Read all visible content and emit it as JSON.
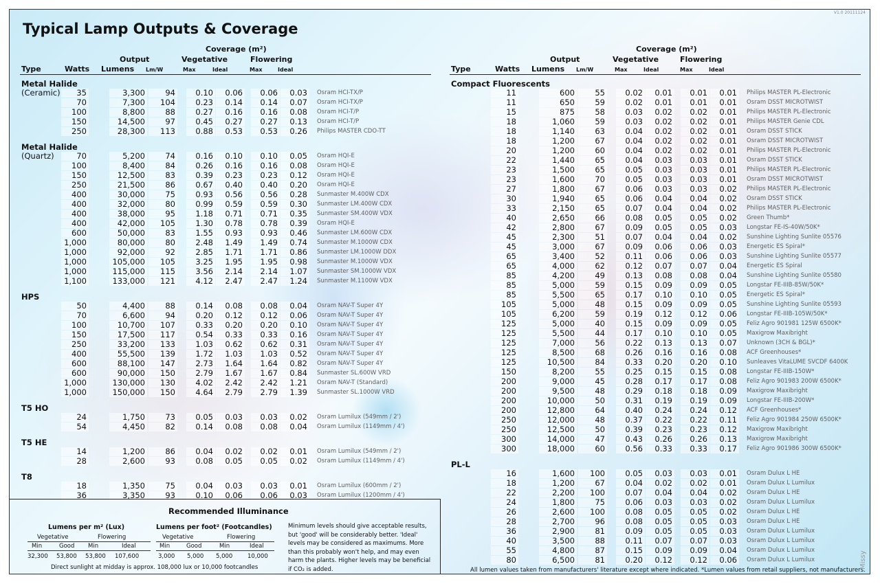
{
  "version": "V1.0 20111124",
  "title": "Typical Lamp Outputs & Coverage",
  "headers": {
    "coverage": "Coverage (m²)",
    "output": "Output",
    "vegetative": "Vegetative",
    "flowering": "Flowering",
    "type": "Type",
    "watts": "Watts",
    "lumens": "Lumens",
    "lmw": "Lm/W",
    "max": "Max",
    "ideal": "Ideal"
  },
  "left_sections": [
    {
      "title": "Metal Halide",
      "subtitle": "(Ceramic)",
      "rows": [
        [
          "35",
          "3,300",
          "94",
          "0.10",
          "0.06",
          "0.06",
          "0.03",
          "Osram HCI-TX/P"
        ],
        [
          "70",
          "7,300",
          "104",
          "0.23",
          "0.14",
          "0.14",
          "0.07",
          "Osram HCI-TX/P"
        ],
        [
          "100",
          "8,800",
          "88",
          "0.27",
          "0.16",
          "0.16",
          "0.08",
          "Osram HCI-T/P"
        ],
        [
          "150",
          "14,500",
          "97",
          "0.45",
          "0.27",
          "0.27",
          "0.13",
          "Osram HCI-T/P"
        ],
        [
          "250",
          "28,300",
          "113",
          "0.88",
          "0.53",
          "0.53",
          "0.26",
          "Philips MASTER CDO-TT"
        ]
      ]
    },
    {
      "title": "Metal Halide",
      "subtitle": "(Quartz)",
      "rows": [
        [
          "70",
          "5,200",
          "74",
          "0.16",
          "0.10",
          "0.10",
          "0.05",
          "Osram HQI-E"
        ],
        [
          "100",
          "8,400",
          "84",
          "0.26",
          "0.16",
          "0.16",
          "0.08",
          "Osram HQI-E"
        ],
        [
          "150",
          "12,500",
          "83",
          "0.39",
          "0.23",
          "0.23",
          "0.12",
          "Osram HQI-E"
        ],
        [
          "250",
          "21,500",
          "86",
          "0.67",
          "0.40",
          "0.40",
          "0.20",
          "Osram HQI-E"
        ],
        [
          "400",
          "30,000",
          "75",
          "0.93",
          "0.56",
          "0.56",
          "0.28",
          "Sunmaster M.400W CDX"
        ],
        [
          "400",
          "32,000",
          "80",
          "0.99",
          "0.59",
          "0.59",
          "0.30",
          "Sunmaster LM.400W CDX"
        ],
        [
          "400",
          "38,000",
          "95",
          "1.18",
          "0.71",
          "0.71",
          "0.35",
          "Sunmaster SM.400W VDX"
        ],
        [
          "400",
          "42,000",
          "105",
          "1.30",
          "0.78",
          "0.78",
          "0.39",
          "Osram HQI-E"
        ],
        [
          "600",
          "50,000",
          "83",
          "1.55",
          "0.93",
          "0.93",
          "0.46",
          "Sunmaster LM.600W CDX"
        ],
        [
          "1,000",
          "80,000",
          "80",
          "2.48",
          "1.49",
          "1.49",
          "0.74",
          "Sunmaster M.1000W CDX"
        ],
        [
          "1,000",
          "92,000",
          "92",
          "2.85",
          "1.71",
          "1.71",
          "0.86",
          "Sunmaster LM.1000W DDX"
        ],
        [
          "1,000",
          "105,000",
          "105",
          "3.25",
          "1.95",
          "1.95",
          "0.98",
          "Sunmaster M.1000W VDX"
        ],
        [
          "1,000",
          "115,000",
          "115",
          "3.56",
          "2.14",
          "2.14",
          "1.07",
          "Sunmaster SM.1000W VDX"
        ],
        [
          "1,100",
          "133,000",
          "121",
          "4.12",
          "2.47",
          "2.47",
          "1.24",
          "Sunmaster M.1100W VDX"
        ]
      ]
    },
    {
      "title": "HPS",
      "subtitle": "",
      "rows": [
        [
          "50",
          "4,400",
          "88",
          "0.14",
          "0.08",
          "0.08",
          "0.04",
          "Osram NAV-T Super 4Y"
        ],
        [
          "70",
          "6,600",
          "94",
          "0.20",
          "0.12",
          "0.12",
          "0.06",
          "Osram NAV-T Super 4Y"
        ],
        [
          "100",
          "10,700",
          "107",
          "0.33",
          "0.20",
          "0.20",
          "0.10",
          "Osram NAV-T Super 4Y"
        ],
        [
          "150",
          "17,500",
          "117",
          "0.54",
          "0.33",
          "0.33",
          "0.16",
          "Osram NAV-T Super 4Y"
        ],
        [
          "250",
          "33,200",
          "133",
          "1.03",
          "0.62",
          "0.62",
          "0.31",
          "Osram NAV-T Super 4Y"
        ],
        [
          "400",
          "55,500",
          "139",
          "1.72",
          "1.03",
          "1.03",
          "0.52",
          "Osram NAV-T Super 4Y"
        ],
        [
          "600",
          "88,100",
          "147",
          "2.73",
          "1.64",
          "1.64",
          "0.82",
          "Osram NAV-T Super 4Y"
        ],
        [
          "600",
          "90,000",
          "150",
          "2.79",
          "1.67",
          "1.67",
          "0.84",
          "Sunmaster SL.600W VRD"
        ],
        [
          "1,000",
          "130,000",
          "130",
          "4.02",
          "2.42",
          "2.42",
          "1.21",
          "Osram NAV-T (Standard)"
        ],
        [
          "1,000",
          "150,000",
          "150",
          "4.64",
          "2.79",
          "2.79",
          "1.39",
          "Sunmaster SL.1000W VRD"
        ]
      ]
    },
    {
      "title": "T5 HO",
      "subtitle": "",
      "rows": [
        [
          "24",
          "1,750",
          "73",
          "0.05",
          "0.03",
          "0.03",
          "0.02",
          "Osram Lumilux (549mm / 2')"
        ],
        [
          "54",
          "4,450",
          "82",
          "0.14",
          "0.08",
          "0.08",
          "0.04",
          "Osram Lumilux (1149mm / 4')"
        ]
      ]
    },
    {
      "title": "T5 HE",
      "subtitle": "",
      "rows": [
        [
          "14",
          "1,200",
          "86",
          "0.04",
          "0.02",
          "0.02",
          "0.01",
          "Osram Lumilux (549mm / 2')"
        ],
        [
          "28",
          "2,600",
          "93",
          "0.08",
          "0.05",
          "0.05",
          "0.02",
          "Osram Lumilux (1149mm / 4')"
        ]
      ]
    },
    {
      "title": "T8",
      "subtitle": "",
      "rows": [
        [
          "18",
          "1,350",
          "75",
          "0.04",
          "0.03",
          "0.03",
          "0.01",
          "Osram Lumilux (600mm / 2')"
        ],
        [
          "36",
          "3,350",
          "93",
          "0.10",
          "0.06",
          "0.06",
          "0.03",
          "Osram Lumilux (1200mm / 4')"
        ]
      ]
    }
  ],
  "right_sections": [
    {
      "title": "Compact Fluorescents",
      "rows": [
        [
          "11",
          "600",
          "55",
          "0.02",
          "0.01",
          "0.01",
          "0.01",
          "Philips MASTER PL-Electronic"
        ],
        [
          "11",
          "650",
          "59",
          "0.02",
          "0.01",
          "0.01",
          "0.01",
          "Osram DSST MICROTWIST"
        ],
        [
          "15",
          "875",
          "58",
          "0.03",
          "0.02",
          "0.02",
          "0.01",
          "Philips MASTER PL-Electronic"
        ],
        [
          "18",
          "1,060",
          "59",
          "0.03",
          "0.02",
          "0.02",
          "0.01",
          "Philips MASTER Genie CDL"
        ],
        [
          "18",
          "1,140",
          "63",
          "0.04",
          "0.02",
          "0.02",
          "0.01",
          "Osram DSST STICK"
        ],
        [
          "18",
          "1,200",
          "67",
          "0.04",
          "0.02",
          "0.02",
          "0.01",
          "Osram DSST MICROTWIST"
        ],
        [
          "20",
          "1,200",
          "60",
          "0.04",
          "0.02",
          "0.02",
          "0.01",
          "Philips MASTER PL-Electronic"
        ],
        [
          "22",
          "1,440",
          "65",
          "0.04",
          "0.03",
          "0.03",
          "0.01",
          "Osram DSST STICK"
        ],
        [
          "23",
          "1,500",
          "65",
          "0.05",
          "0.03",
          "0.03",
          "0.01",
          "Philips MASTER PL-Electronic"
        ],
        [
          "23",
          "1,600",
          "70",
          "0.05",
          "0.03",
          "0.03",
          "0.01",
          "Osram DSST MICROTWIST"
        ],
        [
          "27",
          "1,800",
          "67",
          "0.06",
          "0.03",
          "0.03",
          "0.02",
          "Philips MASTER PL-Electronic"
        ],
        [
          "30",
          "1,940",
          "65",
          "0.06",
          "0.04",
          "0.04",
          "0.02",
          "Osram DSST STICK"
        ],
        [
          "33",
          "2,150",
          "65",
          "0.07",
          "0.04",
          "0.04",
          "0.02",
          "Philips MASTER PL-Electronic"
        ],
        [
          "40",
          "2,650",
          "66",
          "0.08",
          "0.05",
          "0.05",
          "0.02",
          "Green Thumb*"
        ],
        [
          "42",
          "2,800",
          "67",
          "0.09",
          "0.05",
          "0.05",
          "0.03",
          "Longstar FE-IS-40W/50K*"
        ],
        [
          "45",
          "2,300",
          "51",
          "0.07",
          "0.04",
          "0.04",
          "0.02",
          "Sunshine Lighting Sunlite 05576"
        ],
        [
          "45",
          "3,000",
          "67",
          "0.09",
          "0.06",
          "0.06",
          "0.03",
          "Energetic ES Spiral*"
        ],
        [
          "65",
          "3,400",
          "52",
          "0.11",
          "0.06",
          "0.06",
          "0.03",
          "Sunshine Lighting Sunlite 05577"
        ],
        [
          "65",
          "4,000",
          "62",
          "0.12",
          "0.07",
          "0.07",
          "0.04",
          "Energetic ES Spiral"
        ],
        [
          "85",
          "4,200",
          "49",
          "0.13",
          "0.08",
          "0.08",
          "0.04",
          "Sunshine Lighting Sunlite 05580"
        ],
        [
          "85",
          "5,000",
          "59",
          "0.15",
          "0.09",
          "0.09",
          "0.05",
          "Longstar FE-IIIB-85W/50K*"
        ],
        [
          "85",
          "5,500",
          "65",
          "0.17",
          "0.10",
          "0.10",
          "0.05",
          "Energetic ES Spiral*"
        ],
        [
          "105",
          "5,000",
          "48",
          "0.15",
          "0.09",
          "0.09",
          "0.05",
          "Sunshine Lighting Sunlite 05593"
        ],
        [
          "105",
          "6,200",
          "59",
          "0.19",
          "0.12",
          "0.12",
          "0.06",
          "Longstar FE-IIIB-105W/50K*"
        ],
        [
          "125",
          "5,000",
          "40",
          "0.15",
          "0.09",
          "0.09",
          "0.05",
          "Feliz Agro 901981 125W 6500K*"
        ],
        [
          "125",
          "5,500",
          "44",
          "0.17",
          "0.10",
          "0.10",
          "0.05",
          "Maxigrow Maxibright"
        ],
        [
          "125",
          "7,000",
          "56",
          "0.22",
          "0.13",
          "0.13",
          "0.07",
          "Unknown (3CH & BGL)*"
        ],
        [
          "125",
          "8,500",
          "68",
          "0.26",
          "0.16",
          "0.16",
          "0.08",
          "ACF Greenhouses*"
        ],
        [
          "125",
          "10,500",
          "84",
          "0.33",
          "0.20",
          "0.20",
          "0.10",
          "Sunleaves VitaLUME SVCDF 6400K"
        ],
        [
          "150",
          "8,200",
          "55",
          "0.25",
          "0.15",
          "0.15",
          "0.08",
          "Longstar FE-IIIB-150W*"
        ],
        [
          "200",
          "9,000",
          "45",
          "0.28",
          "0.17",
          "0.17",
          "0.08",
          "Feliz Agro 901983 200W 6500K*"
        ],
        [
          "200",
          "9,500",
          "48",
          "0.29",
          "0.18",
          "0.18",
          "0.09",
          "Maxigrow Maxibright"
        ],
        [
          "200",
          "10,000",
          "50",
          "0.31",
          "0.19",
          "0.19",
          "0.09",
          "Longstar FE-IIIB-200W*"
        ],
        [
          "200",
          "12,800",
          "64",
          "0.40",
          "0.24",
          "0.24",
          "0.12",
          "ACF Greenhouses*"
        ],
        [
          "250",
          "12,000",
          "48",
          "0.37",
          "0.22",
          "0.22",
          "0.11",
          "Feliz Agro 901984 250W 6500K*"
        ],
        [
          "250",
          "12,500",
          "50",
          "0.39",
          "0.23",
          "0.23",
          "0.12",
          "Maxigrow Maxibright"
        ],
        [
          "300",
          "14,000",
          "47",
          "0.43",
          "0.26",
          "0.26",
          "0.13",
          "Maxigrow Maxibright"
        ],
        [
          "300",
          "18,000",
          "60",
          "0.56",
          "0.33",
          "0.33",
          "0.17",
          "Feliz Agro 901986 300W 6500K*"
        ]
      ]
    },
    {
      "title": "PL-L",
      "rows": [
        [
          "16",
          "1,600",
          "100",
          "0.05",
          "0.03",
          "0.03",
          "0.01",
          "Osram Dulux L HE"
        ],
        [
          "18",
          "1,200",
          "67",
          "0.04",
          "0.02",
          "0.02",
          "0.01",
          "Osram Dulux L Lumilux"
        ],
        [
          "22",
          "2,200",
          "100",
          "0.07",
          "0.04",
          "0.04",
          "0.02",
          "Osram Dulux L HE"
        ],
        [
          "24",
          "1,800",
          "75",
          "0.06",
          "0.03",
          "0.03",
          "0.02",
          "Osram Dulux L Lumilux"
        ],
        [
          "26",
          "2,600",
          "100",
          "0.08",
          "0.05",
          "0.05",
          "0.02",
          "Osram Dulux L HE"
        ],
        [
          "28",
          "2,700",
          "96",
          "0.08",
          "0.05",
          "0.05",
          "0.03",
          "Osram Dulux L HE"
        ],
        [
          "36",
          "2,900",
          "81",
          "0.09",
          "0.05",
          "0.05",
          "0.03",
          "Osram Dulux L Lumilux"
        ],
        [
          "40",
          "3,500",
          "88",
          "0.11",
          "0.07",
          "0.07",
          "0.03",
          "Osram Dulux L Lumilux"
        ],
        [
          "55",
          "4,800",
          "87",
          "0.15",
          "0.09",
          "0.09",
          "0.04",
          "Osram Dulux L Lumilux"
        ],
        [
          "80",
          "6,500",
          "81",
          "0.20",
          "0.12",
          "0.12",
          "0.06",
          "Osram Dulux L Lumilux"
        ]
      ]
    }
  ],
  "illuminance": {
    "title": "Recommended Illuminance",
    "lux": {
      "title": "Lumens per m² (Lux)",
      "vegetative": "Vegetative",
      "flowering": "Flowering",
      "cols": [
        "Min",
        "Good",
        "Min",
        "Ideal"
      ],
      "values": [
        "32,300",
        "53,800",
        "53,800",
        "107,600"
      ]
    },
    "fc": {
      "title": "Lumens per foot² (Footcandles)",
      "vegetative": "Vegetative",
      "flowering": "Flowering",
      "cols": [
        "Min",
        "Good",
        "Min",
        "Ideal"
      ],
      "values": [
        "3,000",
        "5,000",
        "5,000",
        "10,000"
      ]
    },
    "sunlight": "Direct sunlight at midday is approx. 108,000 lux or 10,000 footcandles",
    "note": "Minimum levels should give acceptable results, but 'good' will be considerably better. 'Ideal' levels may be considered as maximums. More than this probably won't help, and may even harm the plants. Higher levels may be beneficial if CO₂ is added."
  },
  "footnote": "All lumen values taken from manufacturers' literature except where indicated. *Lumen values from retail suppliers, not manufacturers.",
  "signature": "Missy"
}
